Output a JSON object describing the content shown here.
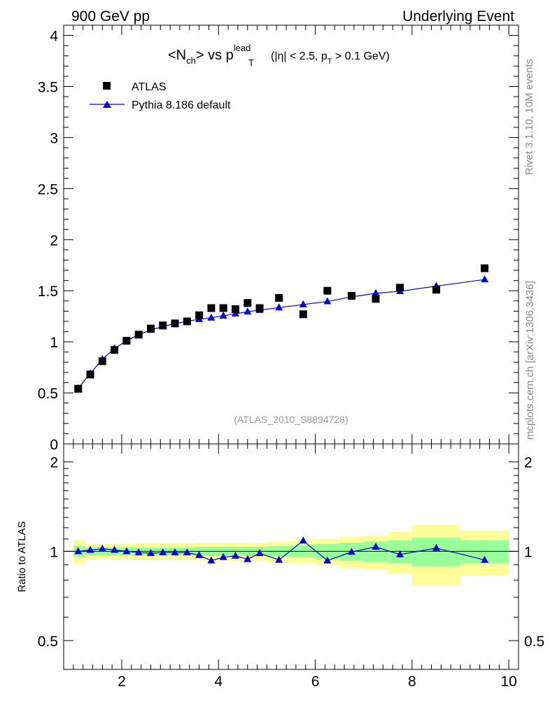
{
  "header": {
    "left": "900 GeV pp",
    "right": "Underlying Event"
  },
  "side_labels": {
    "rivet": "Rivet 3.1.10,  10M events",
    "mcplots": "mcplots.cern.ch [arXiv:1306.3436]"
  },
  "plot_title": {
    "prefix": "<N",
    "ch_sub": "ch",
    "mid": "> vs p",
    "lead_sup": "lead",
    "t_sub": "T",
    "cond_open": "(|η| < 2.5, p",
    "cond_t_sub": "T",
    "cond_close": " > 0.1 GeV)"
  },
  "watermark": "(ATLAS_2010_S8894728)",
  "colors": {
    "data": "#000000",
    "mc": "#0000dd",
    "band_inner": "#99ff99",
    "band_outer": "#ffff99",
    "axis": "#000000"
  },
  "chart_data": [
    {
      "type": "scatter",
      "title": "<Nch> vs pT lead (|η| < 2.5, pT > 0.1 GeV)",
      "xlabel": "",
      "ylabel": "",
      "xlim": [
        0.8,
        10.2
      ],
      "ylim": [
        0,
        4.1
      ],
      "yticks": [
        0,
        0.5,
        1,
        1.5,
        2,
        2.5,
        3,
        3.5,
        4
      ],
      "ytick_labels": [
        "0",
        "0.5",
        "1",
        "1.5",
        "2",
        "2.5",
        "3",
        "3.5",
        "4"
      ],
      "legend_position": "top-left",
      "series": [
        {
          "name": "ATLAS",
          "marker": "square",
          "x": [
            1.1,
            1.35,
            1.6,
            1.85,
            2.1,
            2.35,
            2.6,
            2.85,
            3.1,
            3.35,
            3.6,
            3.85,
            4.1,
            4.35,
            4.6,
            4.85,
            5.25,
            5.75,
            6.25,
            6.75,
            7.25,
            7.75,
            8.5,
            9.5
          ],
          "y": [
            0.54,
            0.68,
            0.81,
            0.92,
            1.01,
            1.07,
            1.13,
            1.16,
            1.18,
            1.2,
            1.26,
            1.33,
            1.33,
            1.32,
            1.38,
            1.33,
            1.43,
            1.27,
            1.5,
            1.45,
            1.42,
            1.53,
            1.51,
            1.72
          ]
        },
        {
          "name": "Pythia 8.186 default",
          "marker": "triangle",
          "x": [
            1.1,
            1.35,
            1.6,
            1.85,
            2.1,
            2.35,
            2.6,
            2.85,
            3.1,
            3.35,
            3.6,
            3.85,
            4.1,
            4.35,
            4.6,
            4.85,
            5.25,
            5.75,
            6.25,
            6.75,
            7.25,
            7.75,
            8.5,
            9.5
          ],
          "y": [
            0.545,
            0.69,
            0.83,
            0.935,
            1.01,
            1.07,
            1.115,
            1.15,
            1.18,
            1.2,
            1.22,
            1.235,
            1.255,
            1.275,
            1.295,
            1.31,
            1.335,
            1.365,
            1.395,
            1.44,
            1.475,
            1.495,
            1.545,
            1.61
          ]
        }
      ]
    },
    {
      "type": "line",
      "ylabel": "Ratio to ATLAS",
      "xlabel": "",
      "xlim": [
        0.8,
        10.2
      ],
      "ylim": [
        0.4,
        2.3
      ],
      "ylog": true,
      "yticks": [
        0.5,
        1,
        2
      ],
      "ytick_labels": [
        "0.5",
        "1",
        "2"
      ],
      "xticks": [
        2,
        4,
        6,
        8,
        10
      ],
      "xtick_labels": [
        "2",
        "4",
        "6",
        "8",
        "10"
      ],
      "reference_line": 1,
      "bins": {
        "edges": [
          1.0,
          1.25,
          1.5,
          1.75,
          2.0,
          2.25,
          2.5,
          2.75,
          3.0,
          3.25,
          3.5,
          3.75,
          4.0,
          4.25,
          4.5,
          4.75,
          5.0,
          5.5,
          6.0,
          6.5,
          7.0,
          7.5,
          8.0,
          9.0,
          10.0
        ],
        "inner_low": [
          0.96,
          0.97,
          0.97,
          0.97,
          0.97,
          0.97,
          0.97,
          0.97,
          0.97,
          0.97,
          0.965,
          0.965,
          0.965,
          0.965,
          0.965,
          0.965,
          0.96,
          0.955,
          0.94,
          0.93,
          0.92,
          0.91,
          0.89,
          0.91
        ],
        "inner_high": [
          1.04,
          1.03,
          1.03,
          1.03,
          1.03,
          1.03,
          1.03,
          1.03,
          1.03,
          1.03,
          1.035,
          1.035,
          1.035,
          1.035,
          1.035,
          1.035,
          1.04,
          1.05,
          1.06,
          1.07,
          1.08,
          1.09,
          1.11,
          1.09
        ],
        "outer_low": [
          0.91,
          0.94,
          0.94,
          0.94,
          0.94,
          0.935,
          0.935,
          0.935,
          0.935,
          0.935,
          0.93,
          0.93,
          0.93,
          0.93,
          0.93,
          0.93,
          0.92,
          0.91,
          0.9,
          0.88,
          0.87,
          0.84,
          0.77,
          0.83
        ],
        "outer_high": [
          1.09,
          1.06,
          1.06,
          1.06,
          1.06,
          1.065,
          1.065,
          1.065,
          1.065,
          1.065,
          1.07,
          1.07,
          1.07,
          1.07,
          1.07,
          1.07,
          1.08,
          1.09,
          1.1,
          1.12,
          1.13,
          1.16,
          1.23,
          1.17
        ]
      },
      "series": [
        {
          "name": "Pythia 8.186 default / ATLAS",
          "x": [
            1.1,
            1.35,
            1.6,
            1.85,
            2.1,
            2.35,
            2.6,
            2.85,
            3.1,
            3.35,
            3.6,
            3.85,
            4.1,
            4.35,
            4.6,
            4.85,
            5.25,
            5.75,
            6.25,
            6.75,
            7.25,
            7.75,
            8.5,
            9.5
          ],
          "y": [
            1.0,
            1.01,
            1.02,
            1.01,
            1.0,
            0.99,
            0.985,
            0.99,
            0.99,
            0.99,
            0.97,
            0.93,
            0.955,
            0.965,
            0.94,
            0.985,
            0.935,
            1.085,
            0.93,
            0.995,
            1.035,
            0.975,
            1.025,
            0.935
          ]
        }
      ]
    }
  ]
}
